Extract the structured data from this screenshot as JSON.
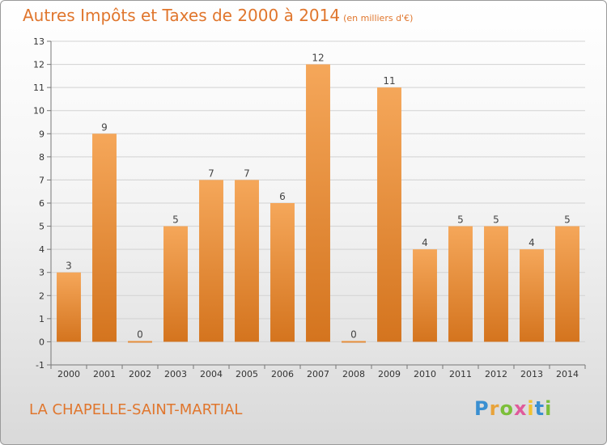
{
  "header": {
    "title": "Autres Impôts et Taxes de 2000 à 2014",
    "unit": "(en milliers d'€)"
  },
  "footer": {
    "commune": "LA CHAPELLE-SAINT-MARTIAL"
  },
  "logo": {
    "letters": [
      "P",
      "r",
      "o",
      "x",
      "i",
      "t",
      "i"
    ],
    "colors": [
      "#3a8fd1",
      "#e8a33b",
      "#7cbf3a",
      "#e05a9b",
      "#f1c232",
      "#3a8fd1",
      "#7cbf3a"
    ]
  },
  "colors": {
    "bar_light": "#f5a75a",
    "bar_dark": "#d4741e",
    "text_accent": "#e0762d"
  },
  "chart_data": {
    "type": "bar",
    "title": "Autres Impôts et Taxes de 2000 à 2014",
    "categories": [
      "2000",
      "2001",
      "2002",
      "2003",
      "2004",
      "2005",
      "2006",
      "2007",
      "2008",
      "2009",
      "2010",
      "2011",
      "2012",
      "2013",
      "2014"
    ],
    "values": [
      3,
      9,
      0,
      5,
      7,
      7,
      6,
      12,
      0,
      11,
      4,
      5,
      5,
      4,
      5
    ],
    "ylim": [
      -1,
      13
    ],
    "yticks": [
      -1,
      0,
      1,
      2,
      3,
      4,
      5,
      6,
      7,
      8,
      9,
      10,
      11,
      12,
      13
    ],
    "grid": true
  }
}
